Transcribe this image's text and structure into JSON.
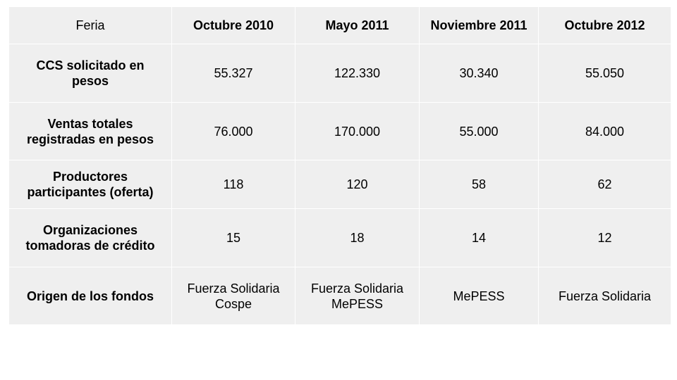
{
  "table": {
    "header": {
      "label": "Feria",
      "columns": [
        "Octubre 2010",
        "Mayo 2011",
        "Noviembre 2011",
        "Octubre 2012"
      ]
    },
    "rows": [
      {
        "label": [
          "CCS solicitado en",
          "pesos"
        ],
        "values": [
          [
            "55.327"
          ],
          [
            "122.330"
          ],
          [
            "30.340"
          ],
          [
            "55.050"
          ]
        ]
      },
      {
        "label": [
          "Ventas totales",
          "registradas en pesos"
        ],
        "values": [
          [
            "76.000"
          ],
          [
            "170.000"
          ],
          [
            "55.000"
          ],
          [
            "84.000"
          ]
        ]
      },
      {
        "label": [
          "Productores",
          "participantes (oferta)"
        ],
        "values": [
          [
            "118"
          ],
          [
            "120"
          ],
          [
            "58"
          ],
          [
            "62"
          ]
        ]
      },
      {
        "label": [
          "Organizaciones",
          "tomadoras de crédito"
        ],
        "values": [
          [
            "15"
          ],
          [
            "18"
          ],
          [
            "14"
          ],
          [
            "12"
          ]
        ]
      },
      {
        "label": [
          "Origen de los fondos"
        ],
        "values": [
          [
            "Fuerza Solidaria",
            "Cospe"
          ],
          [
            "Fuerza Solidaria",
            "MePESS"
          ],
          [
            "MePESS"
          ],
          [
            "Fuerza Solidaria"
          ]
        ]
      }
    ]
  },
  "colors": {
    "cell_background": "#efefef",
    "grid_lines": "#ffffff",
    "text": "#000000"
  }
}
